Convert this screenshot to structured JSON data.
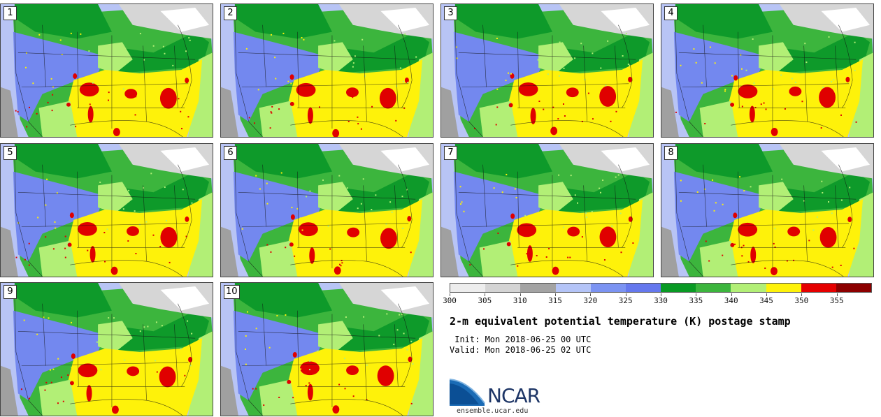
{
  "panels": [
    {
      "label": "1"
    },
    {
      "label": "2"
    },
    {
      "label": "3"
    },
    {
      "label": "4"
    },
    {
      "label": "5"
    },
    {
      "label": "6"
    },
    {
      "label": "7"
    },
    {
      "label": "8"
    },
    {
      "label": "9"
    },
    {
      "label": "10"
    }
  ],
  "colorbar": {
    "colors": [
      "#ededed",
      "#d4d4d4",
      "#a3a3a3",
      "#b4c4f7",
      "#7b93f2",
      "#6578ee",
      "#099a24",
      "#3cb53d",
      "#b2ef76",
      "#fef20a",
      "#e50000",
      "#8c0000"
    ],
    "ticks": [
      "300",
      "305",
      "310",
      "315",
      "320",
      "325",
      "330",
      "335",
      "340",
      "345",
      "350",
      "355"
    ]
  },
  "map_palette": {
    "ocean": "#b8c4f5",
    "west_gray": "#a0a0a0",
    "blue": "#7388ef",
    "green_dark": "#0e9a2a",
    "green_mid": "#3cb53d",
    "green_light": "#b2ef76",
    "yellow": "#fef20a",
    "red": "#e00000",
    "north_gray": "#d6d6d6",
    "line": "#111111"
  },
  "title": "2-m equivalent potential temperature (K) postage stamp",
  "init_text": " Init: Mon 2018-06-25 00 UTC",
  "valid_text": "Valid: Mon 2018-06-25 02 UTC",
  "logo": {
    "name": "NCAR",
    "url": "ensemble.ucar.edu"
  }
}
